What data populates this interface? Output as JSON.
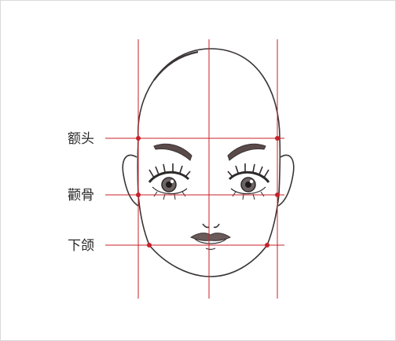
{
  "labels": {
    "forehead": "额头",
    "cheekbone": "颧骨",
    "jaw": "下颌"
  },
  "colors": {
    "guide_line": "#c8202a",
    "guide_dot": "#c8202a",
    "outline": "#3a3535",
    "label_text": "#2a2a2a",
    "border": "#d9d9d9"
  }
}
